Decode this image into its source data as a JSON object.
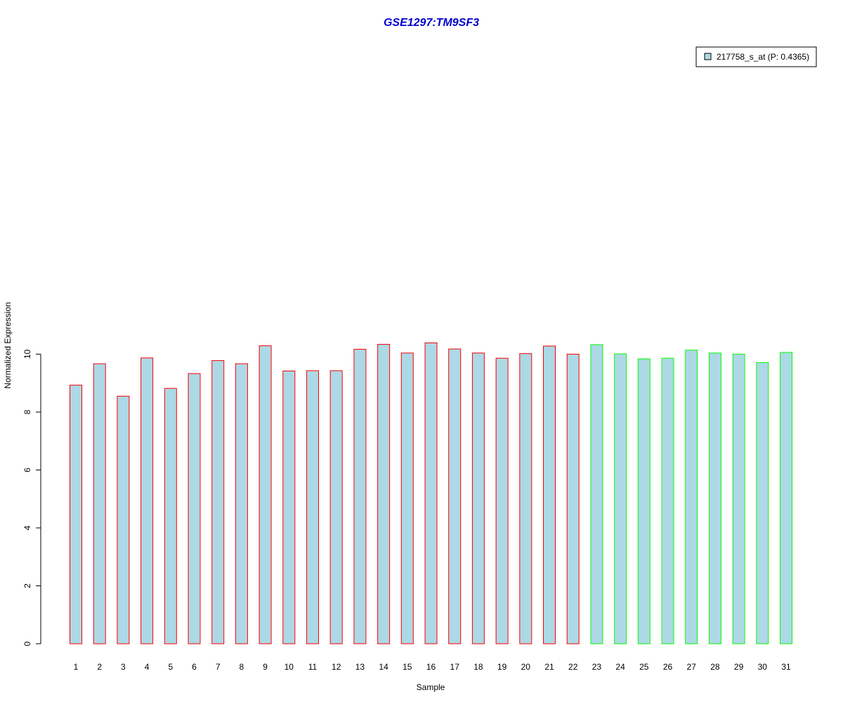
{
  "chart_data": {
    "type": "bar",
    "title": "GSE1297:TM9SF3",
    "xlabel": "Sample",
    "ylabel": "Normalized Expression",
    "categories": [
      "1",
      "2",
      "3",
      "4",
      "5",
      "6",
      "7",
      "8",
      "9",
      "10",
      "11",
      "12",
      "13",
      "14",
      "15",
      "16",
      "17",
      "18",
      "19",
      "20",
      "21",
      "22",
      "23",
      "24",
      "25",
      "26",
      "27",
      "28",
      "29",
      "30",
      "31"
    ],
    "values": [
      8.93,
      9.67,
      8.55,
      9.87,
      8.82,
      9.33,
      9.78,
      9.67,
      10.29,
      9.42,
      9.43,
      9.43,
      10.17,
      10.34,
      10.04,
      10.39,
      10.18,
      10.04,
      9.86,
      10.02,
      10.28,
      10.0,
      10.33,
      10.01,
      9.84,
      9.86,
      10.14,
      10.04,
      10.0,
      9.71,
      10.06
    ],
    "group": [
      1,
      1,
      1,
      1,
      1,
      1,
      1,
      1,
      1,
      1,
      1,
      1,
      1,
      1,
      1,
      1,
      1,
      1,
      1,
      1,
      1,
      1,
      2,
      2,
      2,
      2,
      2,
      2,
      2,
      2,
      2
    ],
    "ylim": [
      0,
      10.5
    ],
    "yticks": [
      0,
      2,
      4,
      6,
      8,
      10
    ],
    "grid": false,
    "legend": {
      "position": "top-right",
      "entries": [
        {
          "label": "217758_s_at (P: 0.4365)",
          "color": "#add8e6"
        }
      ]
    },
    "colors": {
      "bar_fill": "#add8e6",
      "group1_border": "#ff0000",
      "group2_border": "#00ff00",
      "title": "#0000cc",
      "axis": "#000000"
    }
  }
}
